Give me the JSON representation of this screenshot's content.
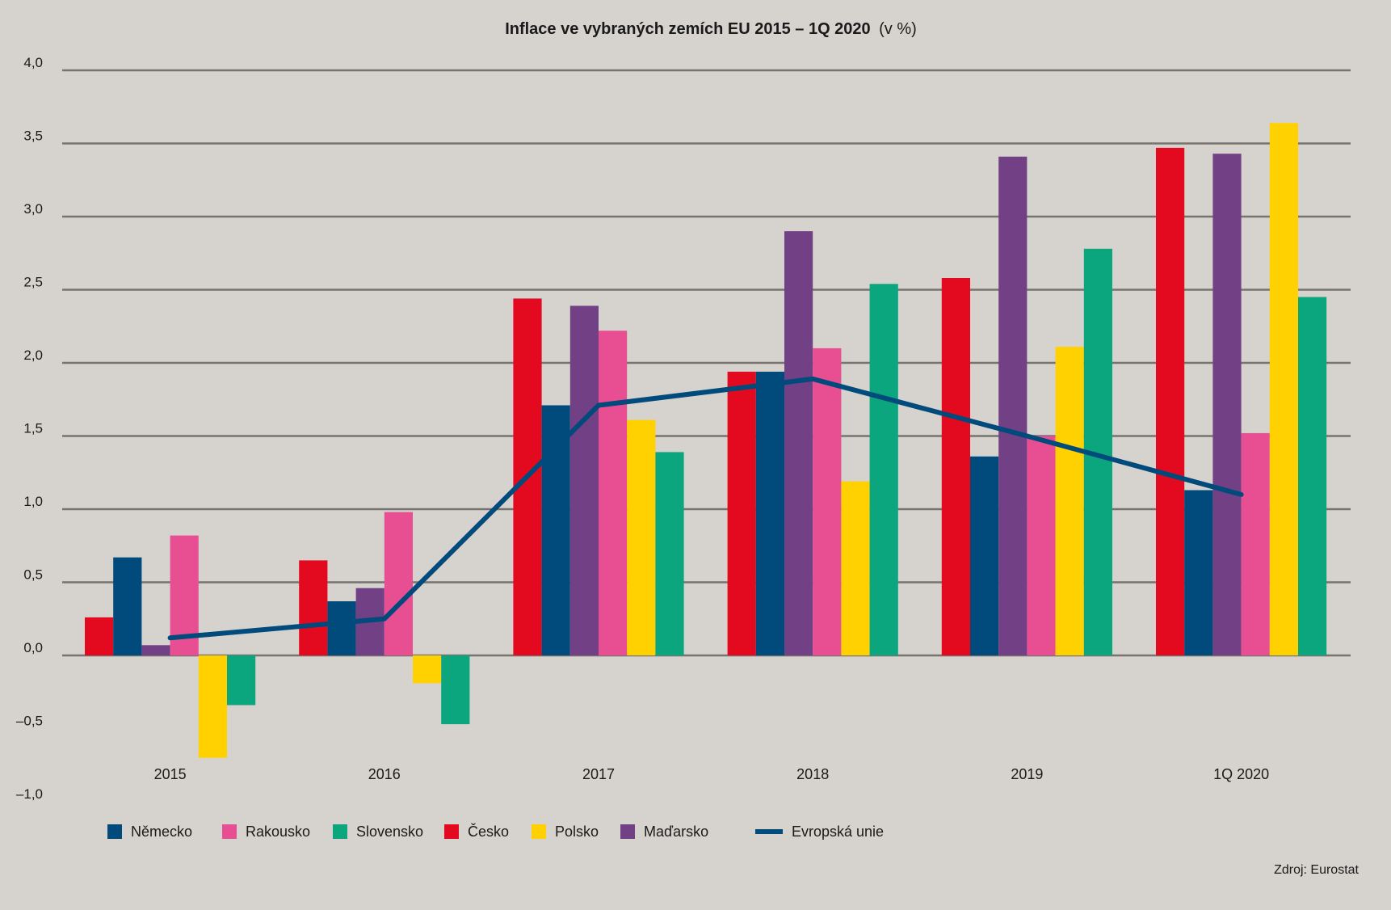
{
  "chart_data": {
    "type": "bar",
    "title": "Inflace ve vybraných zemích EU 2015 – 1Q 2020",
    "title_unit": "(v %)",
    "categories": [
      "2015",
      "2016",
      "2017",
      "2018",
      "2019",
      "1Q 2020"
    ],
    "ylim": [
      -1.0,
      4.0
    ],
    "yticks": [
      4.0,
      3.5,
      3.0,
      2.5,
      2.0,
      1.5,
      1.0,
      0.5,
      0.0,
      -0.5,
      -1.0
    ],
    "ytick_labels": [
      "4,0",
      "3,5",
      "3,0",
      "2,5",
      "2,0",
      "1,5",
      "1,0",
      "0,5",
      "0,0",
      "–0,5",
      "–1,0"
    ],
    "grid": true,
    "bar_order": [
      "Česko",
      "Německo",
      "Maďarsko",
      "Rakousko",
      "Polsko",
      "Slovensko"
    ],
    "series": [
      {
        "name": "Česko",
        "color": "#e30a20",
        "values": [
          0.26,
          0.65,
          2.44,
          1.94,
          2.58,
          3.47
        ]
      },
      {
        "name": "Německo",
        "color": "#004a7c",
        "values": [
          0.67,
          0.37,
          1.71,
          1.94,
          1.36,
          1.13
        ]
      },
      {
        "name": "Maďarsko",
        "color": "#724085",
        "values": [
          0.07,
          0.46,
          2.39,
          2.9,
          3.41,
          3.43
        ]
      },
      {
        "name": "Rakousko",
        "color": "#e84f93",
        "values": [
          0.82,
          0.98,
          2.22,
          2.1,
          1.5,
          1.52
        ]
      },
      {
        "name": "Polsko",
        "color": "#ffd100",
        "values": [
          -0.7,
          -0.19,
          1.61,
          1.19,
          2.11,
          3.64
        ]
      },
      {
        "name": "Slovensko",
        "color": "#0ba57e",
        "values": [
          -0.34,
          -0.47,
          1.39,
          2.54,
          2.78,
          2.45
        ]
      }
    ],
    "line_series": {
      "name": "Evropská unie",
      "color": "#004a7c",
      "values": [
        0.12,
        0.25,
        1.71,
        1.89,
        1.5,
        1.1
      ]
    },
    "legend": {
      "placement": "bottom-left",
      "items": [
        {
          "label": "Německo",
          "color": "#004a7c",
          "kind": "box"
        },
        {
          "label": "Rakousko",
          "color": "#e84f93",
          "kind": "box"
        },
        {
          "label": "Slovensko",
          "color": "#0ba57e",
          "kind": "box"
        },
        {
          "label": "Česko",
          "color": "#e30a20",
          "kind": "box"
        },
        {
          "label": "Polsko",
          "color": "#ffd100",
          "kind": "box"
        },
        {
          "label": "Maďarsko",
          "color": "#724085",
          "kind": "box"
        },
        {
          "label": "Evropská unie",
          "color": "#004a7c",
          "kind": "line"
        }
      ]
    },
    "source": "Zdroj: Eurostat",
    "colors": {
      "background": "#d6d3cf",
      "grid": "#77736f"
    }
  }
}
